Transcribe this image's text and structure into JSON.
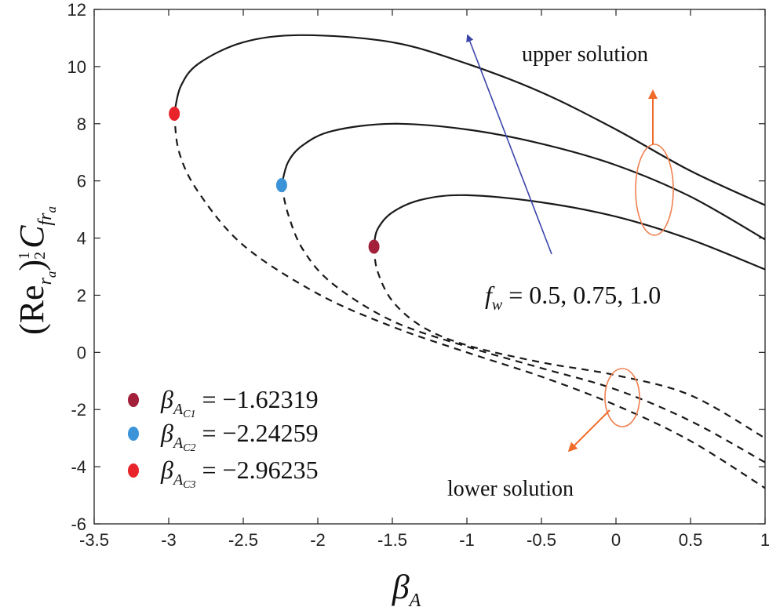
{
  "chart_data": {
    "type": "line",
    "title": "",
    "xlabel": "β",
    "xlabel_sub": "A",
    "ylabel_main": "(Re",
    "ylabel_sub1": "r",
    "ylabel_sub2": "a",
    "ylabel_close": ")",
    "ylabel_frac_num": "1",
    "ylabel_frac_den": "2",
    "ylabel_c": "C",
    "ylabel_c_sub": "fr",
    "ylabel_c_sub2": "a",
    "xlim": [
      -3.5,
      1.0
    ],
    "ylim": [
      -6,
      12
    ],
    "xticks": [
      -3.5,
      -3,
      -2.5,
      -2,
      -1.5,
      -1,
      -0.5,
      0,
      0.5,
      1
    ],
    "xtick_labels": [
      "-3.5",
      "-3",
      "-2.5",
      "-2",
      "-1.5",
      "-1",
      "-0.5",
      "0",
      "0.5",
      "1"
    ],
    "yticks": [
      -6,
      -4,
      -2,
      0,
      2,
      4,
      6,
      8,
      10,
      12
    ],
    "ytick_labels": [
      "-6",
      "-4",
      "-2",
      "0",
      "2",
      "4",
      "6",
      "8",
      "10",
      "12"
    ],
    "series": [
      {
        "name": "fw = 0.5",
        "critical_point": {
          "x": -1.62319,
          "y": 3.7,
          "color": "#a3203a"
        },
        "upper": [
          [
            -1.62319,
            3.7
          ],
          [
            -1.6,
            4.3
          ],
          [
            -1.5,
            4.9
          ],
          [
            -1.3,
            5.35
          ],
          [
            -1.0,
            5.5
          ],
          [
            -0.5,
            5.25
          ],
          [
            0.0,
            4.75
          ],
          [
            0.5,
            3.95
          ],
          [
            1.0,
            2.9
          ]
        ],
        "lower": [
          [
            -1.62319,
            3.7
          ],
          [
            -1.6,
            2.85
          ],
          [
            -1.5,
            1.8
          ],
          [
            -1.3,
            0.9
          ],
          [
            -1.0,
            0.25
          ],
          [
            -0.5,
            -0.35
          ],
          [
            0.0,
            -0.8
          ],
          [
            0.5,
            -1.5
          ],
          [
            1.0,
            -3.0
          ]
        ]
      },
      {
        "name": "fw = 0.75",
        "critical_point": {
          "x": -2.24259,
          "y": 5.85,
          "color": "#3b93d8"
        },
        "upper": [
          [
            -2.24259,
            5.85
          ],
          [
            -2.2,
            6.65
          ],
          [
            -2.1,
            7.25
          ],
          [
            -1.9,
            7.75
          ],
          [
            -1.5,
            8.0
          ],
          [
            -1.0,
            7.8
          ],
          [
            -0.5,
            7.3
          ],
          [
            0.0,
            6.55
          ],
          [
            0.5,
            5.45
          ],
          [
            1.0,
            3.95
          ]
        ],
        "lower": [
          [
            -2.24259,
            5.85
          ],
          [
            -2.2,
            4.85
          ],
          [
            -2.1,
            3.6
          ],
          [
            -1.9,
            2.4
          ],
          [
            -1.5,
            1.1
          ],
          [
            -1.0,
            0.2
          ],
          [
            -0.5,
            -0.55
          ],
          [
            0.0,
            -1.3
          ],
          [
            0.5,
            -2.4
          ],
          [
            1.0,
            -3.85
          ]
        ]
      },
      {
        "name": "fw = 1.0",
        "critical_point": {
          "x": -2.96235,
          "y": 8.35,
          "color": "#e8232a"
        },
        "upper": [
          [
            -2.96235,
            8.35
          ],
          [
            -2.92,
            9.3
          ],
          [
            -2.8,
            10.1
          ],
          [
            -2.5,
            10.85
          ],
          [
            -2.1,
            11.1
          ],
          [
            -1.5,
            10.85
          ],
          [
            -1.0,
            10.1
          ],
          [
            -0.5,
            9.1
          ],
          [
            0.0,
            7.8
          ],
          [
            0.5,
            6.35
          ],
          [
            1.0,
            5.15
          ]
        ],
        "lower": [
          [
            -2.96235,
            8.35
          ],
          [
            -2.93,
            7.0
          ],
          [
            -2.8,
            5.6
          ],
          [
            -2.5,
            3.75
          ],
          [
            -2.0,
            2.05
          ],
          [
            -1.5,
            0.9
          ],
          [
            -1.0,
            0.0
          ],
          [
            -0.5,
            -0.85
          ],
          [
            0.0,
            -1.85
          ],
          [
            0.5,
            -3.1
          ],
          [
            1.0,
            -4.75
          ]
        ]
      }
    ],
    "legend": {
      "placement": "bottom-left",
      "entries": [
        {
          "sym": "β",
          "sub": "A",
          "subsub": "C1",
          "eq": "= −1.62319",
          "color": "#a3203a"
        },
        {
          "sym": "β",
          "sub": "A",
          "subsub": "C2",
          "eq": "= −2.24259",
          "color": "#3b93d8"
        },
        {
          "sym": "β",
          "sub": "A",
          "subsub": "C3",
          "eq": "= −2.96235",
          "color": "#e8232a"
        }
      ]
    },
    "annotations": {
      "upper_label": "upper solution",
      "lower_label": "lower solution",
      "fw_symbol": "f",
      "fw_sub": "w",
      "fw_values": " = 0.5, 0.75, 1.0",
      "arrow_color": "#3a44a8",
      "ellipse_color": "#f08050",
      "arrow_orange": "#f06a2a"
    }
  }
}
